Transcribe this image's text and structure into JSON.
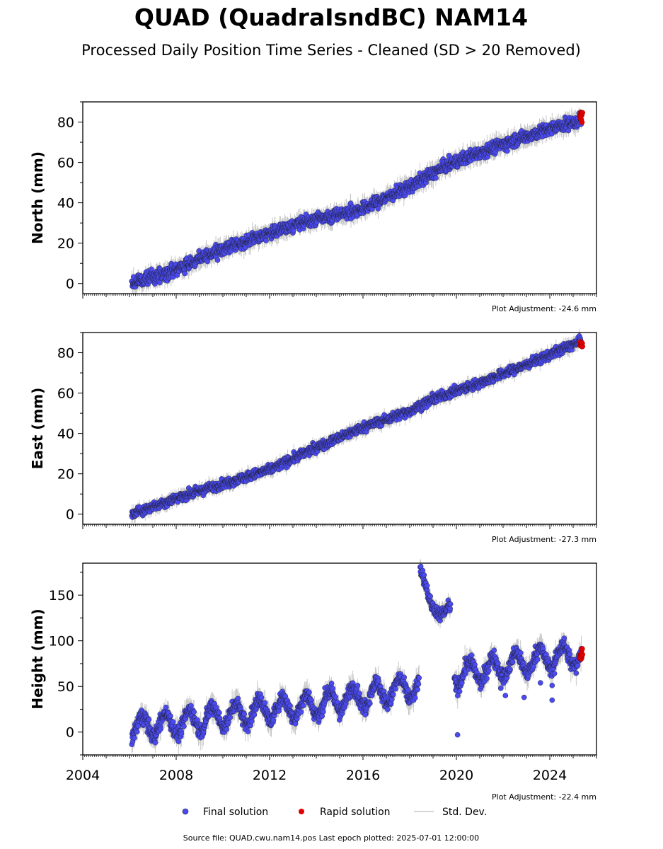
{
  "title": "QUAD (QuadraIsndBC) NAM14",
  "subtitle": "Processed Daily Position Time Series - Cleaned (SD > 20 Removed)",
  "source_note": "Source file: QUAD.cwu.nam14.pos  Last epoch plotted: 2025-07-01 12:00:00",
  "legend": {
    "final": "Final solution",
    "rapid": "Rapid solution",
    "std": "Std. Dev."
  },
  "colors": {
    "final": "#4a4af0",
    "rapid": "#e00000",
    "std": "#c8c8c8"
  },
  "chart_data": [
    {
      "type": "scatter",
      "ylabel": "North (mm)",
      "adjustment": "Plot Adjustment: -24.6 mm",
      "xlim": [
        2004,
        2026
      ],
      "ylim": [
        -5,
        90
      ],
      "yticks": [
        0,
        20,
        40,
        60,
        80
      ],
      "xticks": [],
      "trend": [
        [
          2006.1,
          0
        ],
        [
          2008,
          7
        ],
        [
          2010,
          17
        ],
        [
          2012,
          25
        ],
        [
          2014,
          32
        ],
        [
          2016,
          37
        ],
        [
          2018,
          48
        ],
        [
          2019.5,
          58
        ],
        [
          2021,
          65
        ],
        [
          2023,
          73
        ],
        [
          2025,
          80
        ],
        [
          2025.4,
          81
        ]
      ],
      "noise": 2.2,
      "rapid": {
        "x": [
          2025.3,
          2025.4
        ],
        "y": [
          79,
          85
        ]
      }
    },
    {
      "type": "scatter",
      "ylabel": "East (mm)",
      "adjustment": "Plot Adjustment: -27.3 mm",
      "xlim": [
        2004,
        2026
      ],
      "ylim": [
        -5,
        90
      ],
      "yticks": [
        0,
        20,
        40,
        60,
        80
      ],
      "xticks": [],
      "trend": [
        [
          2006.1,
          0
        ],
        [
          2008,
          8
        ],
        [
          2010,
          15
        ],
        [
          2012,
          22
        ],
        [
          2014,
          33
        ],
        [
          2016,
          43
        ],
        [
          2018,
          51
        ],
        [
          2019,
          57
        ],
        [
          2021,
          65
        ],
        [
          2023,
          74
        ],
        [
          2025,
          84
        ],
        [
          2025.4,
          86
        ]
      ],
      "noise": 1.6,
      "rapid": {
        "x": [
          2025.3,
          2025.4
        ],
        "y": [
          83,
          86
        ]
      }
    },
    {
      "type": "scatter",
      "ylabel": "Height (mm)",
      "adjustment": "Plot Adjustment: -22.4 mm",
      "xlim": [
        2004,
        2026
      ],
      "ylim": [
        -25,
        185
      ],
      "yticks": [
        0,
        50,
        100,
        150
      ],
      "xticks": [
        "2004",
        "2008",
        "2012",
        "2016",
        "2020",
        "2024"
      ],
      "trend": [
        [
          2006.1,
          5
        ],
        [
          2008,
          10
        ],
        [
          2010,
          18
        ],
        [
          2012,
          25
        ],
        [
          2014,
          30
        ],
        [
          2016,
          40
        ],
        [
          2018,
          48
        ],
        [
          2018.5,
          52
        ],
        [
          2019.9,
          62
        ],
        [
          2022,
          72
        ],
        [
          2024,
          82
        ],
        [
          2025.4,
          85
        ]
      ],
      "noise": 6,
      "seasonal": 12,
      "gap": [
        2018.4,
        2019.9
      ],
      "excursion": {
        "x": [
          2018.45,
          2018.65,
          2018.9,
          2019.3,
          2019.5,
          2019.75
        ],
        "y": [
          180,
          165,
          140,
          128,
          132,
          140
        ]
      },
      "outliers": {
        "x": [
          2020.05,
          2022.1,
          2022.9,
          2023.6,
          2024.1,
          2024.1,
          2024.2,
          2016.1,
          2021.9
        ],
        "y": [
          -3,
          40,
          38,
          54,
          35,
          51,
          64,
          19,
          48
        ]
      },
      "rapid": {
        "x": [
          2025.3,
          2025.4
        ],
        "y": [
          80,
          92
        ]
      }
    }
  ]
}
